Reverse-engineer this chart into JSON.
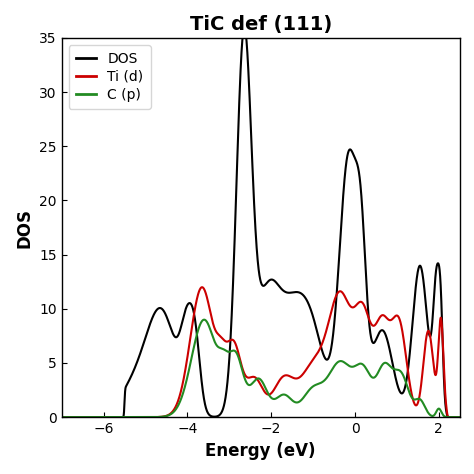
{
  "title": "TiC def (111)",
  "xlabel": "Energy (eV)",
  "ylabel": "DOS",
  "xlim": [
    -7,
    2.5
  ],
  "ylim": [
    0,
    35
  ],
  "xticks": [
    -6,
    -4,
    -2,
    0,
    2
  ],
  "yticks": [
    0,
    5,
    10,
    15,
    20,
    25,
    30,
    35
  ],
  "legend": [
    {
      "label": "DOS",
      "color": "#000000"
    },
    {
      "label": "Ti (d)",
      "color": "#cc0000"
    },
    {
      "label": "C (p)",
      "color": "#228B22"
    }
  ],
  "line_width": 1.5,
  "title_fontsize": 14,
  "label_fontsize": 12,
  "tick_fontsize": 10,
  "background_color": "#ffffff"
}
